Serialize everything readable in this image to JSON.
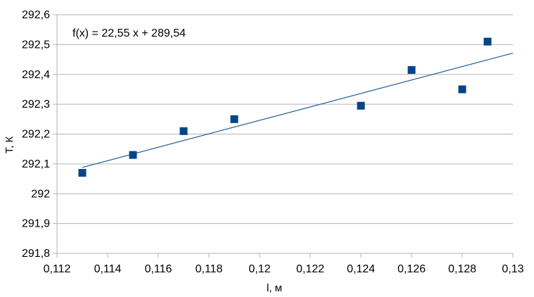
{
  "chart_data": {
    "type": "scatter",
    "title": "",
    "xlabel": "l, м",
    "ylabel": "T, К",
    "xlim": [
      0.112,
      0.13
    ],
    "ylim": [
      291.8,
      292.6
    ],
    "x_ticks": [
      "0,112",
      "0,114",
      "0,116",
      "0,118",
      "0,12",
      "0,122",
      "0,124",
      "0,126",
      "0,128",
      "0,13"
    ],
    "y_ticks": [
      "291,8",
      "291,9",
      "292",
      "292,1",
      "292,2",
      "292,3",
      "292,4",
      "292,5",
      "292,6"
    ],
    "grid": "horizontal",
    "marker_color": "#004586",
    "trend_color": "#1f5f9a",
    "points": [
      {
        "x": 0.113,
        "y": 292.07
      },
      {
        "x": 0.115,
        "y": 292.13
      },
      {
        "x": 0.117,
        "y": 292.21
      },
      {
        "x": 0.119,
        "y": 292.25
      },
      {
        "x": 0.124,
        "y": 292.295
      },
      {
        "x": 0.126,
        "y": 292.415
      },
      {
        "x": 0.128,
        "y": 292.35
      },
      {
        "x": 0.129,
        "y": 292.51
      }
    ],
    "trendline": {
      "slope": 22.55,
      "intercept": 289.54,
      "x_range": [
        0.113,
        0.13
      ]
    },
    "annotation": "f(x) = 22,55 x + 289,54"
  }
}
